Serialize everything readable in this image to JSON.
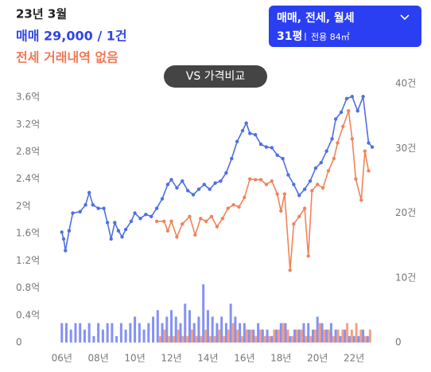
{
  "header": {
    "date": "23년 3월",
    "sale": "매매 29,000 / 1건",
    "jeonse": "전세 거래내역 없음"
  },
  "filter": {
    "types": "매매, 전세, 월세",
    "area": "31평",
    "exclusive": "전용 84㎡"
  },
  "compare_button": "VS 가격비교",
  "chart_data": {
    "type": "combo",
    "grid": false,
    "xlim": [
      5.75,
      23.3
    ],
    "xticks": [
      {
        "value": 6,
        "label": "06년"
      },
      {
        "value": 8,
        "label": "08년"
      },
      {
        "value": 10,
        "label": "10년"
      },
      {
        "value": 12,
        "label": "12년"
      },
      {
        "value": 14,
        "label": "14년"
      },
      {
        "value": 16,
        "label": "16년"
      },
      {
        "value": 18,
        "label": "18년"
      },
      {
        "value": 20,
        "label": "20년"
      },
      {
        "value": 22,
        "label": "22년"
      }
    ],
    "ylim": [
      0,
      3.8
    ],
    "yticks": [
      0,
      {
        "value": 0.4,
        "label": "0.4억"
      },
      {
        "value": 0.8,
        "label": "0.8억"
      },
      {
        "value": 1.2,
        "label": "1.2억"
      },
      {
        "value": 1.6,
        "label": "1.6억"
      },
      {
        "value": 2,
        "label": "2억"
      },
      {
        "value": 2.4,
        "label": "2.4억"
      },
      {
        "value": 2.8,
        "label": "2.8억"
      },
      {
        "value": 3.2,
        "label": "3.2억"
      },
      {
        "value": 3.6,
        "label": "3.6억"
      }
    ],
    "y2lim": [
      0,
      40
    ],
    "y2ticks": [
      0,
      {
        "value": 10,
        "label": "10건"
      },
      {
        "value": 20,
        "label": "20건"
      },
      {
        "value": 30,
        "label": "30건"
      },
      {
        "value": 40,
        "label": "40건"
      }
    ],
    "series": [
      {
        "type": "bar",
        "axis": "y2",
        "color": "#6f7ff2",
        "x": [
          6.0,
          6.25,
          6.5,
          6.75,
          7.0,
          7.25,
          7.5,
          7.75,
          8.0,
          8.25,
          8.5,
          8.75,
          9.0,
          9.25,
          9.5,
          9.75,
          10.0,
          10.25,
          10.5,
          10.75,
          11.0,
          11.25,
          11.5,
          11.75,
          12.0,
          12.25,
          12.5,
          12.75,
          13.0,
          13.25,
          13.5,
          13.75,
          14.0,
          14.25,
          14.5,
          14.75,
          15.0,
          15.25,
          15.5,
          15.75,
          16.0,
          16.25,
          16.5,
          16.75,
          17.0,
          17.25,
          17.5,
          17.75,
          18.0,
          18.25,
          18.5,
          18.75,
          19.0,
          19.25,
          19.5,
          19.75,
          20.0,
          20.25,
          20.5,
          20.75,
          21.0,
          21.25,
          21.5,
          21.75,
          22.0,
          22.25,
          22.5,
          22.75
        ],
        "values": [
          3,
          3,
          2,
          3,
          3,
          2,
          3,
          1,
          3,
          2,
          3,
          3,
          1,
          3,
          2,
          3,
          4,
          3,
          2,
          3,
          4,
          5,
          3,
          4,
          5,
          4,
          3,
          6,
          5,
          3,
          4,
          9,
          5,
          4,
          3,
          4,
          3,
          6,
          4,
          3,
          3,
          2,
          2,
          3,
          2,
          2,
          1,
          2,
          3,
          3,
          1,
          2,
          2,
          3,
          3,
          2,
          4,
          3,
          2,
          3,
          2,
          1,
          2,
          1,
          1,
          1,
          2,
          1
        ]
      },
      {
        "type": "bar",
        "axis": "y2",
        "color": "#f0906e",
        "x": [
          11.25,
          11.5,
          11.75,
          12.0,
          12.25,
          12.5,
          12.75,
          13.0,
          13.25,
          13.5,
          13.75,
          14.0,
          14.25,
          14.5,
          14.75,
          15.0,
          15.25,
          15.5,
          15.75,
          16.0,
          16.25,
          16.5,
          16.75,
          17.0,
          17.25,
          17.5,
          17.75,
          18.0,
          18.25,
          18.5,
          18.75,
          19.0,
          19.25,
          19.5,
          19.75,
          20.0,
          20.25,
          20.5,
          20.75,
          21.0,
          21.25,
          21.5,
          21.75,
          22.0,
          22.25,
          22.5,
          22.75
        ],
        "values": [
          1,
          2,
          1,
          1,
          2,
          1,
          1,
          2,
          1,
          1,
          2,
          1,
          1,
          2,
          1,
          2,
          3,
          2,
          1,
          2,
          2,
          1,
          2,
          1,
          1,
          2,
          2,
          3,
          2,
          1,
          2,
          2,
          1,
          1,
          2,
          3,
          2,
          2,
          1,
          2,
          2,
          3,
          2,
          3,
          2,
          1,
          2
        ]
      },
      {
        "type": "line",
        "color": "#4f6fe2",
        "x": [
          6.0,
          6.1,
          6.2,
          6.4,
          6.6,
          7.0,
          7.3,
          7.5,
          7.7,
          8.0,
          8.3,
          8.5,
          8.7,
          8.9,
          9.1,
          9.3,
          9.5,
          9.8,
          10.0,
          10.3,
          10.6,
          10.9,
          11.2,
          11.5,
          11.8,
          12.0,
          12.3,
          12.6,
          12.9,
          13.2,
          13.5,
          13.8,
          14.1,
          14.4,
          14.7,
          15.0,
          15.3,
          15.6,
          15.9,
          16.1,
          16.3,
          16.6,
          16.9,
          17.2,
          17.5,
          17.8,
          18.1,
          18.4,
          18.7,
          19.0,
          19.3,
          19.6,
          19.9,
          20.2,
          20.5,
          20.8,
          21.0,
          21.3,
          21.6,
          21.9,
          22.2,
          22.5,
          22.8,
          23.0
        ],
        "values": [
          1.62,
          1.52,
          1.35,
          1.64,
          1.9,
          1.92,
          2.02,
          2.2,
          2.02,
          1.97,
          1.97,
          1.76,
          1.52,
          1.76,
          1.64,
          1.55,
          1.66,
          1.78,
          1.9,
          1.82,
          1.88,
          1.85,
          1.97,
          2.11,
          2.32,
          2.39,
          2.27,
          2.37,
          2.23,
          2.17,
          2.25,
          2.32,
          2.25,
          2.34,
          2.37,
          2.49,
          2.7,
          2.95,
          3.11,
          3.22,
          3.07,
          3.05,
          2.91,
          2.87,
          2.86,
          2.75,
          2.7,
          2.46,
          2.32,
          2.16,
          2.25,
          2.37,
          2.56,
          2.64,
          2.81,
          2.99,
          3.28,
          3.38,
          3.58,
          3.61,
          3.4,
          3.61,
          2.93,
          2.87
        ]
      },
      {
        "type": "line",
        "color": "#f0845c",
        "x": [
          11.2,
          11.6,
          11.8,
          12.0,
          12.3,
          12.6,
          13.0,
          13.3,
          13.6,
          13.9,
          14.2,
          14.5,
          14.8,
          15.1,
          15.4,
          15.7,
          16.0,
          16.3,
          16.6,
          16.9,
          17.2,
          17.5,
          17.8,
          18.0,
          18.2,
          18.5,
          18.7,
          19.0,
          19.3,
          19.5,
          19.7,
          20.0,
          20.3,
          20.6,
          20.9,
          21.1,
          21.4,
          21.7,
          21.9,
          22.1,
          22.4,
          22.6,
          22.8
        ],
        "values": [
          1.78,
          1.78,
          1.64,
          1.78,
          1.55,
          1.74,
          1.85,
          1.58,
          1.82,
          1.78,
          1.85,
          1.7,
          1.82,
          1.97,
          2.02,
          1.99,
          2.13,
          2.4,
          2.39,
          2.39,
          2.32,
          2.37,
          2.18,
          1.93,
          2.18,
          1.06,
          1.74,
          1.85,
          1.97,
          1.27,
          2.23,
          2.32,
          2.27,
          2.52,
          2.7,
          2.93,
          3.17,
          3.4,
          2.99,
          2.4,
          2.09,
          2.81,
          2.52
        ]
      }
    ]
  }
}
